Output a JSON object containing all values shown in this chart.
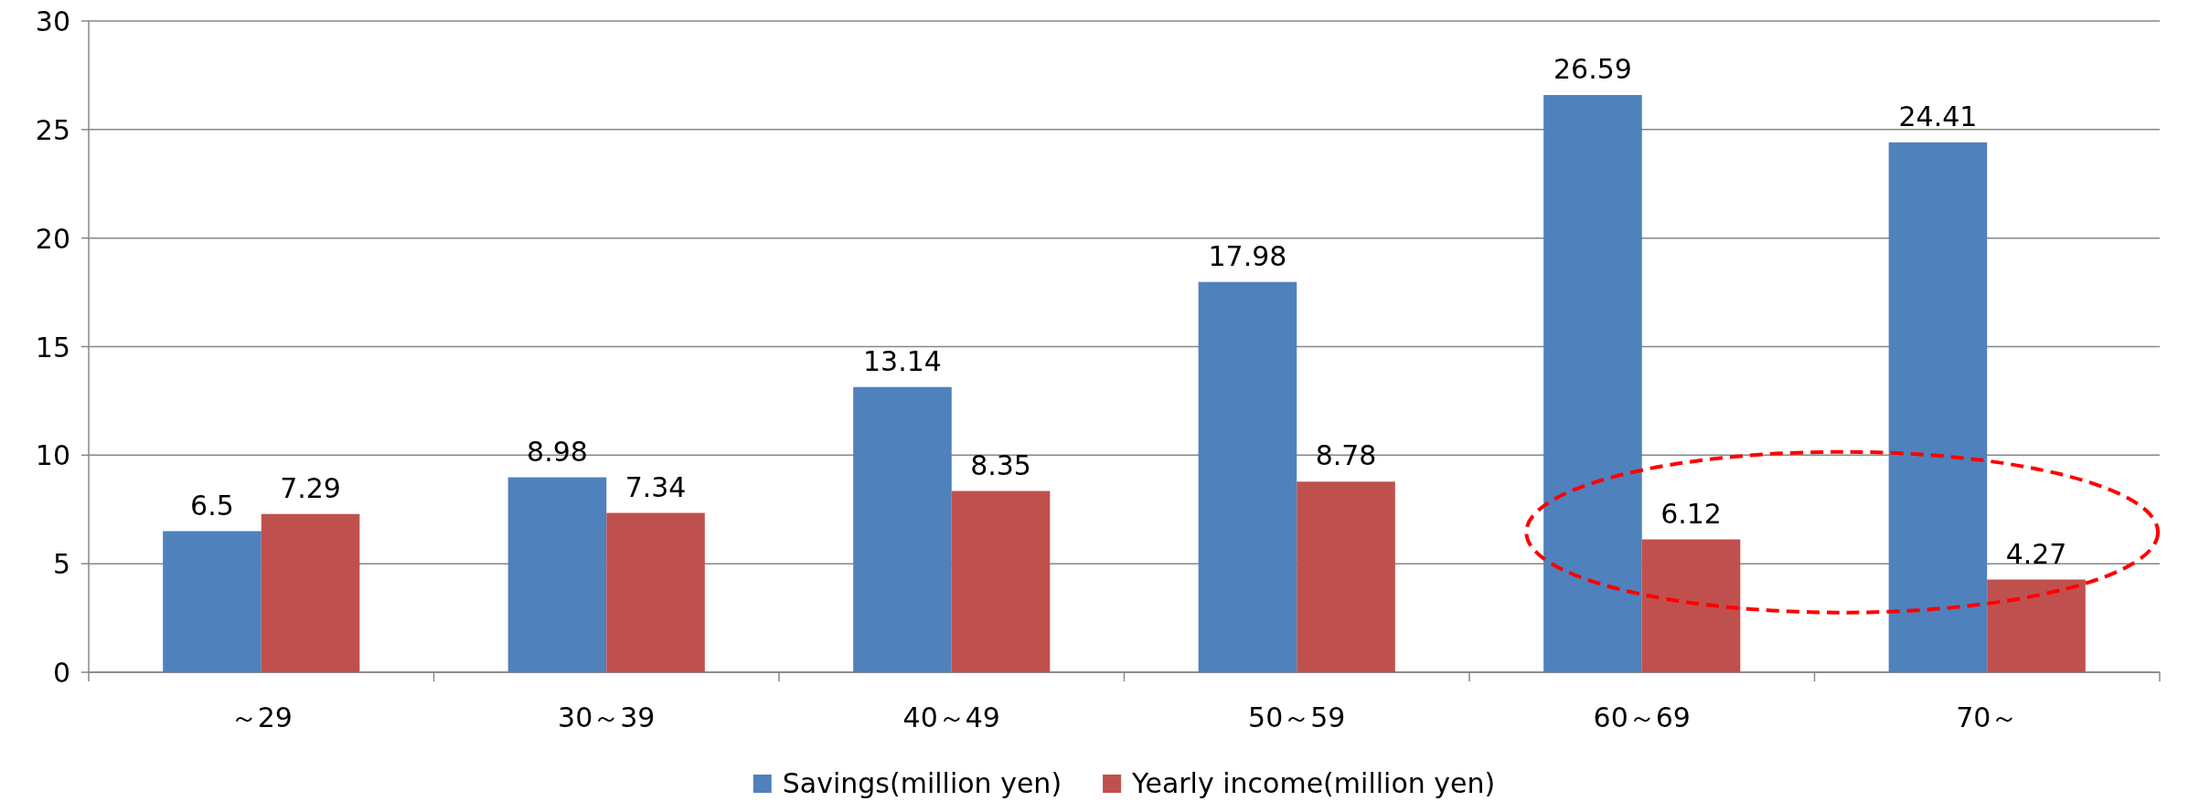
{
  "chart_data": {
    "type": "bar",
    "categories": [
      "～29",
      "30～39",
      "40～49",
      "50～59",
      "60～69",
      "70～"
    ],
    "series": [
      {
        "name": "Savings(million yen)",
        "color": "#4f81bd",
        "values": [
          6.5,
          8.98,
          13.14,
          17.98,
          26.59,
          24.41
        ]
      },
      {
        "name": "Yearly income(million yen)",
        "color": "#c0504d",
        "values": [
          7.29,
          7.34,
          8.35,
          8.78,
          6.12,
          4.27
        ]
      }
    ],
    "ylim": [
      0,
      30
    ],
    "yticks": [
      0,
      5,
      10,
      15,
      20,
      25,
      30
    ],
    "grid": "y",
    "legend": "bottom",
    "data_labels": true
  }
}
